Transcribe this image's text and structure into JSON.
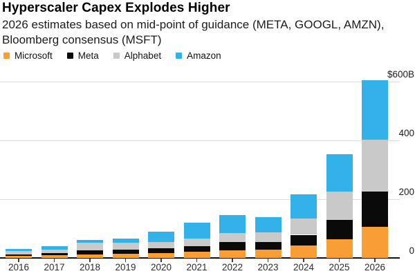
{
  "page": {
    "title": "Hyperscaler Capex Explodes Higher",
    "subtitle": "2026 estimates based on mid-point of guidance (META, GOOGL, AMZN), Bloomberg consensus (MSFT)"
  },
  "chart_data": {
    "type": "bar",
    "stacked": true,
    "title": "Hyperscaler Capex Explodes Higher",
    "subtitle": "2026 estimates based on mid-point of guidance (META, GOOGL, AMZN), Bloomberg consensus (MSFT)",
    "unit": "USD billions",
    "categories": [
      "2016",
      "2017",
      "2018",
      "2019",
      "2020",
      "2021",
      "2022",
      "2023",
      "2024",
      "2025",
      "2026"
    ],
    "series": [
      {
        "name": "Microsoft",
        "color": "#F89E35",
        "values": [
          8,
          9,
          12,
          14,
          17,
          21,
          25,
          28,
          42,
          64,
          105
        ]
      },
      {
        "name": "Meta",
        "color": "#0A0A0A",
        "values": [
          5,
          7,
          14,
          15,
          16,
          19,
          30,
          27,
          37,
          65,
          122
        ]
      },
      {
        "name": "Alphabet",
        "color": "#C9C9C9",
        "values": [
          10,
          13,
          25,
          23,
          22,
          25,
          30,
          32,
          56,
          96,
          175
        ]
      },
      {
        "name": "Amazon",
        "color": "#32B2E8",
        "values": [
          8,
          10,
          11,
          13,
          35,
          56,
          62,
          52,
          81,
          128,
          203
        ]
      }
    ],
    "totals": [
      31,
      39,
      62,
      65,
      90,
      121,
      147,
      139,
      216,
      353,
      605
    ],
    "y_axis": {
      "side": "right",
      "ylim": [
        0,
        620
      ],
      "ticks": [
        {
          "value": 0,
          "label": "0"
        },
        {
          "value": 200,
          "label": "200"
        },
        {
          "value": 400,
          "label": "400"
        },
        {
          "value": 600,
          "label": "$600B"
        }
      ]
    },
    "legend_position": "top-left",
    "grid": true
  }
}
